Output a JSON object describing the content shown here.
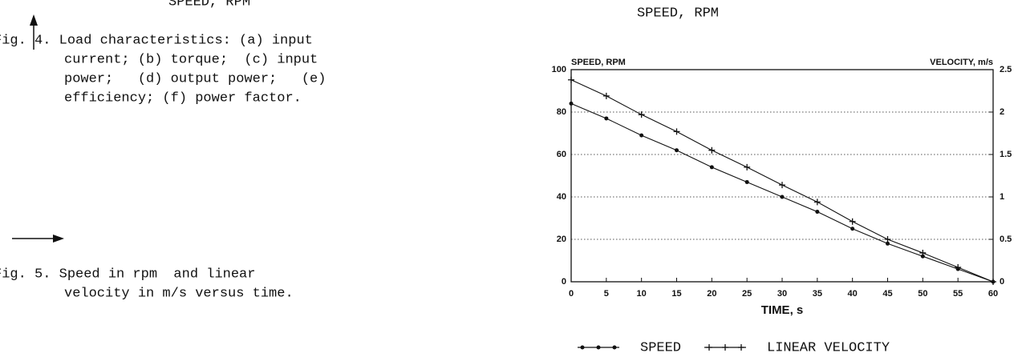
{
  "top_fragment": "SPEED, RPM",
  "captions": [
    {
      "lines": [
        "Fig. 4. Load characteristics: (a) input",
        "current; (b) torque;  (c) input",
        "power;   (d) output power;   (e)",
        "efficiency; (f) power factor."
      ]
    },
    {
      "lines": [
        "Fig. 5. Speed in rpm  and linear",
        "velocity in m/s versus time."
      ]
    }
  ],
  "right_fragment": "SPEED, RPM",
  "chart_data": {
    "type": "line",
    "ylabel": "SPEED, RPM",
    "y2label": "VELOCITY, m/s",
    "xlabel": "TIME, s",
    "x": [
      0,
      5,
      10,
      15,
      20,
      25,
      30,
      35,
      40,
      45,
      50,
      55,
      60
    ],
    "xlim": [
      0,
      60
    ],
    "xticks": [
      0,
      5,
      10,
      15,
      20,
      25,
      30,
      35,
      40,
      45,
      50,
      55,
      60
    ],
    "ylim": [
      0,
      100
    ],
    "yticks": [
      0,
      20,
      40,
      60,
      80,
      100
    ],
    "y2lim": [
      0,
      2.5
    ],
    "y2ticks": [
      0,
      0.5,
      1,
      1.5,
      2,
      2.5
    ],
    "grid": true,
    "legend": "bottom",
    "series": [
      {
        "name": "SPEED",
        "color": "#111111",
        "marker": "dot",
        "values": [
          84,
          77,
          69,
          62,
          54,
          47,
          40,
          33,
          25,
          18,
          12,
          6,
          0
        ]
      },
      {
        "name": "LINEAR VELOCITY",
        "color": "#111111",
        "marker": "plus",
        "axis": "y2",
        "values": [
          2.38,
          2.19,
          1.97,
          1.77,
          1.55,
          1.35,
          1.14,
          0.94,
          0.71,
          0.5,
          0.34,
          0.17,
          0
        ]
      }
    ]
  }
}
